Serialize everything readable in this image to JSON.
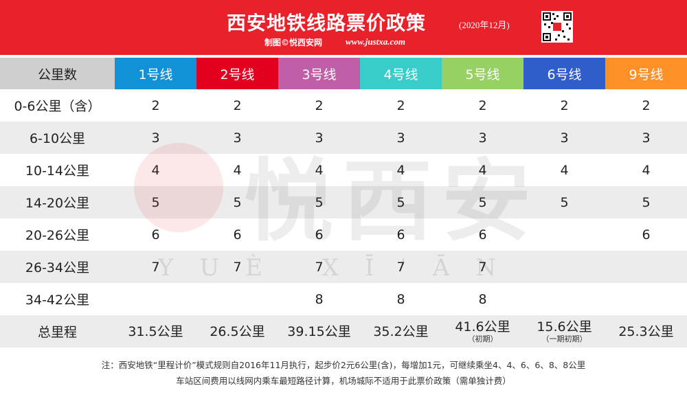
{
  "header": {
    "title": "西安地铁线路票价政策",
    "date": "(2020年12月)",
    "credit": "制图©悦西安网",
    "site": "www.justxa.com",
    "background_color": "#e8212b",
    "qr_icon": "qr-code-icon"
  },
  "table": {
    "corner": "公里数",
    "lines": [
      {
        "label": "1号线",
        "color": "#1191d6"
      },
      {
        "label": "2号线",
        "color": "#e3001f"
      },
      {
        "label": "3号线",
        "color": "#c05fa7"
      },
      {
        "label": "4号线",
        "color": "#38cdcb"
      },
      {
        "label": "5号线",
        "color": "#97d063"
      },
      {
        "label": "6号线",
        "color": "#2f5dc9"
      },
      {
        "label": "9号线",
        "color": "#fe9028"
      }
    ],
    "rows": [
      {
        "range": "0-6公里（含）",
        "fares": [
          "2",
          "2",
          "2",
          "2",
          "2",
          "2",
          "2"
        ]
      },
      {
        "range": "6-10公里",
        "fares": [
          "3",
          "3",
          "3",
          "3",
          "3",
          "3",
          "3"
        ]
      },
      {
        "range": "10-14公里",
        "fares": [
          "4",
          "4",
          "4",
          "4",
          "4",
          "4",
          "4"
        ]
      },
      {
        "range": "14-20公里",
        "fares": [
          "5",
          "5",
          "5",
          "5",
          "5",
          "5",
          "5"
        ]
      },
      {
        "range": "20-26公里",
        "fares": [
          "6",
          "6",
          "6",
          "6",
          "6",
          "",
          "6"
        ]
      },
      {
        "range": "26-34公里",
        "fares": [
          "7",
          "7",
          "7",
          "7",
          "7",
          "",
          ""
        ]
      },
      {
        "range": "34-42公里",
        "fares": [
          "",
          "",
          "8",
          "8",
          "8",
          "",
          ""
        ]
      }
    ],
    "total": {
      "label": "总里程",
      "values": [
        {
          "value": "31.5公里",
          "note": ""
        },
        {
          "value": "26.5公里",
          "note": ""
        },
        {
          "value": "39.15公里",
          "note": ""
        },
        {
          "value": "35.2公里",
          "note": ""
        },
        {
          "value": "41.6公里",
          "note": "（初期）"
        },
        {
          "value": "15.6公里",
          "note": "（一期初期）"
        },
        {
          "value": "25.3公里",
          "note": ""
        }
      ]
    }
  },
  "watermark": {
    "text": "悦西安",
    "pinyin": "YUÈ XĪ'ĀN"
  },
  "notes": {
    "line1": "注：西安地铁“里程计价”模式规则自2016年11月执行，起步价2元6公里(含)，每增加1元，可继续乘坐4、4、6、6、8、8公里",
    "line2": "车站区间费用以线网内乘车最短路径计算，机场城际不适用于此票价政策（需单独计费）"
  }
}
